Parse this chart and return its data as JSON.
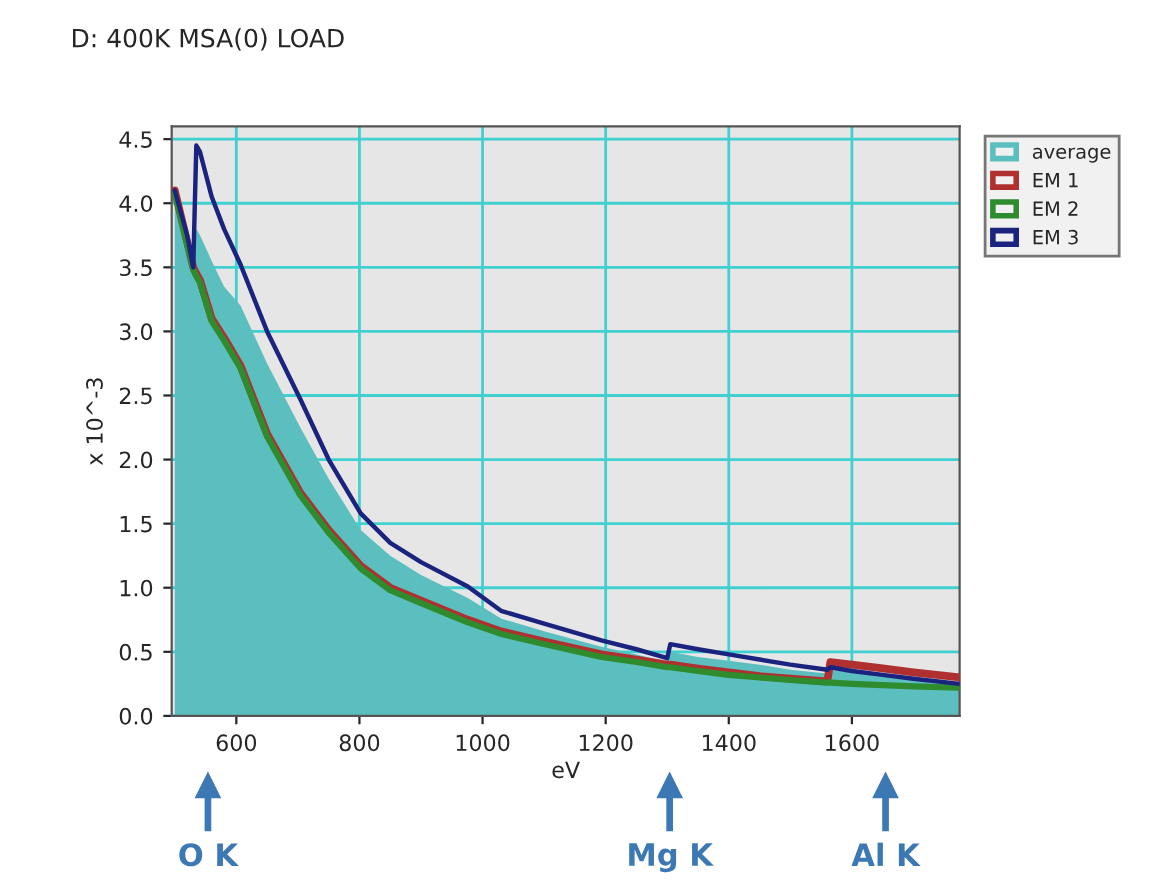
{
  "chart_data": {
    "type": "line",
    "title": "D: 400K MSA(0) LOAD",
    "xlabel": "eV",
    "ylabel": "x 10^-3",
    "x": [
      500,
      520,
      530,
      535,
      541,
      560,
      580,
      607,
      650,
      704,
      750,
      802,
      850,
      900,
      976,
      1030,
      1100,
      1193,
      1250,
      1300,
      1305,
      1350,
      1400,
      1450,
      1500,
      1560,
      1565,
      1600,
      1650,
      1700,
      1775
    ],
    "series": [
      {
        "name": "average",
        "type": "area",
        "color": "#5bbfbf",
        "values": [
          4.1,
          3.7,
          3.45,
          3.8,
          3.75,
          3.55,
          3.35,
          3.2,
          2.75,
          2.25,
          1.85,
          1.45,
          1.25,
          1.1,
          0.92,
          0.76,
          0.66,
          0.54,
          0.48,
          0.42,
          0.5,
          0.46,
          0.43,
          0.4,
          0.36,
          0.33,
          0.36,
          0.34,
          0.31,
          0.28,
          0.24
        ]
      },
      {
        "name": "EM 1",
        "color": "#b03030",
        "values": [
          4.1,
          3.7,
          3.5,
          3.45,
          3.4,
          3.1,
          2.95,
          2.73,
          2.2,
          1.74,
          1.45,
          1.17,
          1.0,
          0.9,
          0.75,
          0.66,
          0.58,
          0.48,
          0.44,
          0.4,
          0.4,
          0.37,
          0.34,
          0.31,
          0.29,
          0.27,
          0.42,
          0.4,
          0.37,
          0.34,
          0.3
        ]
      },
      {
        "name": "EM 2",
        "color": "#2e8b2e",
        "values": [
          4.08,
          3.68,
          3.48,
          3.43,
          3.38,
          3.08,
          2.93,
          2.71,
          2.18,
          1.72,
          1.43,
          1.15,
          0.98,
          0.88,
          0.73,
          0.64,
          0.56,
          0.46,
          0.42,
          0.38,
          0.38,
          0.35,
          0.32,
          0.3,
          0.28,
          0.26,
          0.26,
          0.25,
          0.24,
          0.23,
          0.22
        ]
      },
      {
        "name": "EM 3",
        "color": "#1a237e",
        "values": [
          4.1,
          3.75,
          3.5,
          4.45,
          4.4,
          4.05,
          3.8,
          3.52,
          3.0,
          2.47,
          2.0,
          1.58,
          1.35,
          1.2,
          1.01,
          0.82,
          0.72,
          0.59,
          0.52,
          0.45,
          0.56,
          0.52,
          0.48,
          0.44,
          0.4,
          0.36,
          0.38,
          0.35,
          0.32,
          0.29,
          0.25
        ]
      }
    ],
    "xlim": [
      495,
      1775
    ],
    "ylim": [
      0,
      4.6
    ],
    "xticks": [
      600,
      800,
      1000,
      1200,
      1400,
      1600
    ],
    "yticks": [
      {
        "value": 0,
        "label": "0.0"
      },
      {
        "value": 0.5,
        "label": "0.5"
      },
      {
        "value": 1,
        "label": "1.0"
      },
      {
        "value": 1.5,
        "label": "1.5"
      },
      {
        "value": 2,
        "label": "2.0"
      },
      {
        "value": 2.5,
        "label": "2.5"
      },
      {
        "value": 3,
        "label": "3.0"
      },
      {
        "value": 3.5,
        "label": "3.5"
      },
      {
        "value": 4,
        "label": "4.0"
      },
      {
        "value": 4.5,
        "label": "4.5"
      }
    ],
    "grid": true,
    "legend": "right",
    "annotations": [
      "O K",
      "Mg K",
      "Al K"
    ]
  }
}
